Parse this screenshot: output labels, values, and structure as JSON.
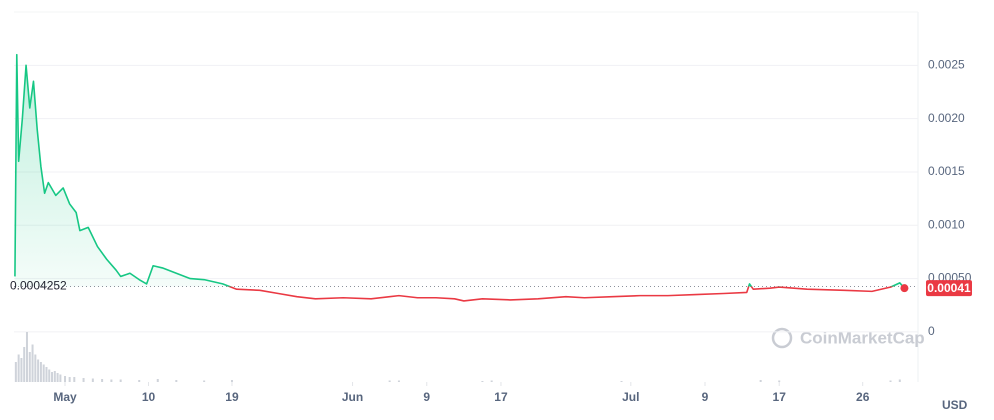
{
  "chart_data": {
    "type": "line",
    "series": [
      {
        "color_up": "#16c784",
        "color_down": "#ea3943",
        "x": [
          -5.4,
          -5.2,
          -5.0,
          -4.6,
          -4.2,
          -3.8,
          -3.4,
          -3.0,
          -2.6,
          -2.2,
          -1.8,
          -1.0,
          -0.2,
          0.5,
          1.2,
          1.6,
          2.5,
          3.5,
          4.5,
          5.5,
          6.0,
          7.0,
          8.0,
          8.8,
          9.5,
          10.5,
          12,
          13.5,
          15,
          17,
          18.5,
          21,
          23,
          25,
          27,
          30,
          33,
          35,
          36,
          38,
          40,
          42,
          43,
          45,
          48,
          51,
          54,
          56,
          59,
          62,
          65,
          68,
          71,
          73.5,
          73.8,
          74.2,
          76,
          77,
          80,
          84,
          87,
          89,
          90,
          90.5
        ],
        "values": [
          0.00052,
          0.0026,
          0.0016,
          0.002,
          0.0025,
          0.0021,
          0.00235,
          0.0019,
          0.00155,
          0.0013,
          0.0014,
          0.00128,
          0.00135,
          0.0012,
          0.00112,
          0.00095,
          0.00098,
          0.0008,
          0.00068,
          0.00058,
          0.00052,
          0.00055,
          0.00049,
          0.00045,
          0.00062,
          0.0006,
          0.00055,
          0.0005,
          0.00049,
          0.00045,
          0.0004,
          0.00039,
          0.00036,
          0.00033,
          0.00031,
          0.00032,
          0.00031,
          0.00033,
          0.00034,
          0.00032,
          0.00032,
          0.00031,
          0.00029,
          0.00031,
          0.0003,
          0.00031,
          0.00033,
          0.00032,
          0.00033,
          0.00034,
          0.00034,
          0.00035,
          0.00036,
          0.00037,
          0.00045,
          0.0004,
          0.00041,
          0.00042,
          0.0004,
          0.00039,
          0.00038,
          0.00042,
          0.00046,
          0.00041
        ]
      }
    ],
    "baseline": 0.0004252,
    "current_label": "0.00041",
    "volume": {
      "color": "#cfd3da",
      "x": [
        -5.3,
        -5.0,
        -4.7,
        -4.4,
        -4.1,
        -3.8,
        -3.5,
        -3.2,
        -2.9,
        -2.6,
        -2.3,
        -2.0,
        -1.7,
        -1.4,
        -1.1,
        -0.8,
        -0.5,
        0,
        0.5,
        1,
        2,
        3,
        4,
        5,
        6,
        8,
        10,
        12,
        15,
        18,
        35,
        36,
        45,
        46,
        60,
        75,
        77,
        89,
        90
      ],
      "values": [
        40,
        55,
        48,
        70,
        100,
        60,
        75,
        55,
        45,
        40,
        35,
        30,
        25,
        20,
        22,
        18,
        15,
        12,
        10,
        10,
        8,
        7,
        6,
        5,
        5,
        4,
        6,
        4,
        3,
        4,
        3,
        3,
        2,
        3,
        2,
        4,
        3,
        3,
        5
      ]
    },
    "xlim": [
      -5.5,
      91.1
    ],
    "xticks": [
      {
        "value": 0,
        "label": "May"
      },
      {
        "value": 9,
        "label": "10"
      },
      {
        "value": 18,
        "label": "19"
      },
      {
        "value": 31,
        "label": "Jun"
      },
      {
        "value": 39,
        "label": "9"
      },
      {
        "value": 47,
        "label": "17"
      },
      {
        "value": 61,
        "label": "Jul"
      },
      {
        "value": 69,
        "label": "9"
      },
      {
        "value": 77,
        "label": "17"
      },
      {
        "value": 86,
        "label": "26"
      }
    ],
    "ylim": [
      -0.00047,
      0.003
    ],
    "yticks": [
      0,
      {
        "value": 0.0005,
        "label": "0.00050"
      },
      {
        "value": 0.001,
        "label": "0.0010"
      },
      0.0015,
      {
        "value": 0.002,
        "label": "0.0020"
      },
      0.0025
    ],
    "y_unit": "USD",
    "watermark": "CoinMarketCap",
    "grid": true
  }
}
